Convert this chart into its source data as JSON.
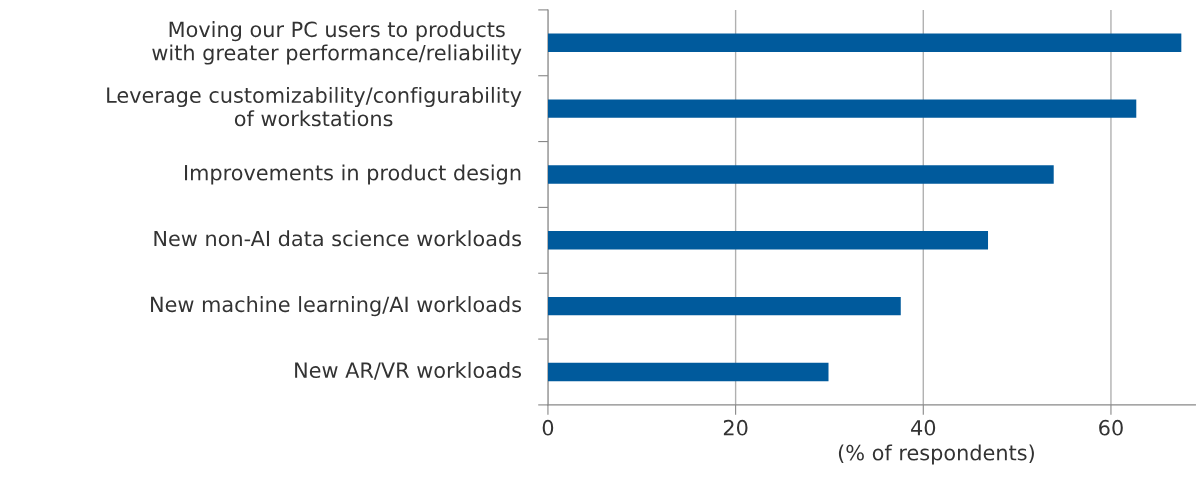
{
  "chart_data": {
    "type": "bar",
    "orientation": "horizontal",
    "categories": [
      "Moving our PC users to products with greater performance/reliability",
      "Leverage customizability/configurability of workstations",
      "Improvements in product design",
      "New non-AI data science workloads",
      "New machine learning/AI workloads",
      "New AR/VR workloads"
    ],
    "values": [
      67.5,
      62.7,
      53.9,
      46.9,
      37.6,
      29.9
    ],
    "color": "#005a9c",
    "xlim": [
      0,
      69
    ],
    "xticks": [
      0,
      20,
      40,
      60
    ],
    "xlabel": "(% of respondents)",
    "grid": "x"
  }
}
